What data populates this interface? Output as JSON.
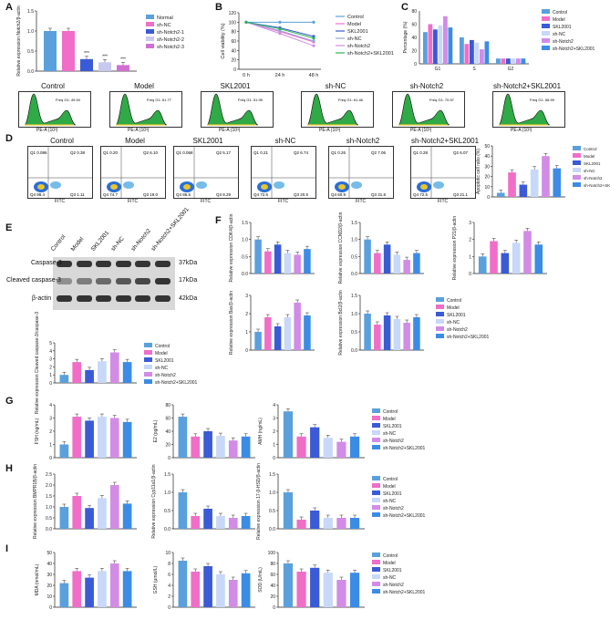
{
  "panels": {
    "A": "A",
    "B": "B",
    "C": "C",
    "D": "D",
    "E": "E",
    "F": "F",
    "G": "G",
    "H": "H",
    "I": "I"
  },
  "colors": {
    "Normal": "#5aa0dc",
    "sh-NC": "#f06ec8",
    "sh-Notch2-1": "#3a5ad6",
    "sh-Notch2-2": "#c8c8f0",
    "sh-Notch2-3": "#d26ed2",
    "Control": "#5aa0dc",
    "Model": "#f06ec8",
    "SKL2001": "#3a5ad6",
    "shNC": "#c8d8f8",
    "sh-Notch2": "#d28ce6",
    "sh-Notch2+SKL2001": "#3c8ce6",
    "sh-Notch2+SKL2001_B": "#28b45a"
  },
  "legendA": [
    "Normal",
    "sh-NC",
    "sh-Notch2-1",
    "sh-Notch2-2",
    "sh-Notch2-3"
  ],
  "legendMain": [
    "Control",
    "Model",
    "SKL2001",
    "sh-NC",
    "sh-Notch2",
    "sh-Notch2+SKL2001"
  ],
  "chart_data": [
    {
      "id": "A",
      "type": "bar",
      "ylabel": "Relative expression Notch2/β-actin",
      "categories": [
        "Normal",
        "sh-NC",
        "sh-Notch2-1",
        "sh-Notch2-2",
        "sh-Notch2-3"
      ],
      "values": [
        1.0,
        1.0,
        0.3,
        0.22,
        0.15
      ],
      "ylim": [
        0,
        1.5
      ],
      "yticks": [
        "0.0",
        "0.5",
        "1.0",
        "1.5"
      ],
      "annot": [
        "",
        "",
        "***",
        "***",
        "***"
      ]
    },
    {
      "id": "B",
      "type": "line",
      "ylabel": "Cell viability (%)",
      "x": [
        "0 h",
        "24 h",
        "48 h"
      ],
      "ylim": [
        0,
        120
      ],
      "yticks": [
        "0",
        "20",
        "40",
        "60",
        "80",
        "100",
        "120"
      ],
      "series": [
        {
          "name": "Control",
          "values": [
            100,
            100,
            100
          ]
        },
        {
          "name": "Model",
          "values": [
            100,
            80,
            58
          ]
        },
        {
          "name": "SKL2001",
          "values": [
            100,
            88,
            70
          ]
        },
        {
          "name": "sh-NC",
          "values": [
            100,
            82,
            60
          ]
        },
        {
          "name": "sh-Notch2",
          "values": [
            100,
            76,
            50
          ]
        },
        {
          "name": "sh-Notch2+SKL2001",
          "values": [
            100,
            86,
            66
          ]
        }
      ]
    },
    {
      "id": "C",
      "type": "bar",
      "ylabel": "Percentage (%)",
      "categories": [
        "G1",
        "S",
        "G2"
      ],
      "ylim": [
        0,
        80
      ],
      "yticks": [
        "0",
        "20",
        "40",
        "60",
        "80"
      ],
      "series": [
        {
          "name": "Control",
          "values": [
            48,
            40,
            8
          ]
        },
        {
          "name": "Model",
          "values": [
            60,
            30,
            8
          ]
        },
        {
          "name": "SKL2001",
          "values": [
            52,
            36,
            8
          ]
        },
        {
          "name": "sh-NC",
          "values": [
            58,
            32,
            8
          ]
        },
        {
          "name": "sh-Notch2",
          "values": [
            72,
            22,
            8
          ]
        },
        {
          "name": "sh-Notch2+SKL2001",
          "values": [
            55,
            34,
            8
          ]
        }
      ]
    },
    {
      "id": "D",
      "type": "bar",
      "ylabel": "Apoptotic cell ratio (%)",
      "ylim": [
        0,
        50
      ],
      "yticks": [
        "0",
        "10",
        "20",
        "30",
        "40",
        "50"
      ],
      "values": [
        4,
        24,
        12,
        27,
        40,
        28
      ]
    },
    {
      "id": "E",
      "type": "bar",
      "ylabel": "Relative expression Cleaved caspase-3/caspase-3",
      "ylim": [
        0,
        5
      ],
      "yticks": [
        "0",
        "1",
        "2",
        "3",
        "4",
        "5"
      ],
      "values": [
        1.0,
        2.6,
        1.6,
        2.7,
        3.8,
        2.6
      ]
    },
    {
      "id": "F1",
      "type": "bar",
      "ylabel": "Relative expression CDK4/β-actin",
      "ylim": [
        0,
        1.5
      ],
      "yticks": [
        "0.0",
        "0.5",
        "1.0",
        "1.5"
      ],
      "values": [
        1.0,
        0.65,
        0.85,
        0.6,
        0.55,
        0.72
      ]
    },
    {
      "id": "F2",
      "type": "bar",
      "ylabel": "Relative expression CCND2/β-actin",
      "ylim": [
        0,
        1.5
      ],
      "yticks": [
        "0.0",
        "0.5",
        "1.0",
        "1.5"
      ],
      "values": [
        1.0,
        0.6,
        0.85,
        0.55,
        0.4,
        0.6
      ]
    },
    {
      "id": "F3",
      "type": "bar",
      "ylabel": "Relative expression P21/β-actin",
      "ylim": [
        0,
        3
      ],
      "yticks": [
        "0",
        "1",
        "2",
        "3"
      ],
      "values": [
        1.0,
        1.9,
        1.2,
        1.8,
        2.5,
        1.7
      ]
    },
    {
      "id": "F4",
      "type": "bar",
      "ylabel": "Relative expression Bax/β-actin",
      "ylim": [
        0,
        3
      ],
      "yticks": [
        "0",
        "1",
        "2",
        "3"
      ],
      "values": [
        1.0,
        1.8,
        1.3,
        1.8,
        2.6,
        1.9
      ]
    },
    {
      "id": "F5",
      "type": "bar",
      "ylabel": "Relative expression Bcl2/β-actin",
      "ylim": [
        0,
        1.5
      ],
      "yticks": [
        "0.0",
        "0.5",
        "1.0",
        "1.5"
      ],
      "values": [
        1.0,
        0.7,
        0.95,
        0.85,
        0.75,
        0.9
      ]
    },
    {
      "id": "G1",
      "type": "bar",
      "ylabel": "FSH (ng/mL)",
      "ylim": [
        0,
        4
      ],
      "yticks": [
        "0",
        "1",
        "2",
        "3",
        "4"
      ],
      "values": [
        1.0,
        3.1,
        2.8,
        3.1,
        3.0,
        2.7
      ]
    },
    {
      "id": "G2",
      "type": "bar",
      "ylabel": "E2 (pg/mL)",
      "ylim": [
        0,
        80
      ],
      "yticks": [
        "0",
        "20",
        "40",
        "60",
        "80"
      ],
      "values": [
        62,
        32,
        40,
        33,
        26,
        32
      ]
    },
    {
      "id": "G3",
      "type": "bar",
      "ylabel": "AMH (ng/mL)",
      "ylim": [
        0,
        4
      ],
      "yticks": [
        "0",
        "1",
        "2",
        "3",
        "4"
      ],
      "values": [
        3.5,
        1.6,
        2.3,
        1.5,
        1.2,
        1.6
      ]
    },
    {
      "id": "H1",
      "type": "bar",
      "ylabel": "Relative expression BMPR1B/β-actin",
      "ylim": [
        0,
        2.5
      ],
      "yticks": [
        "0.0",
        "0.5",
        "1.0",
        "1.5",
        "2.0",
        "2.5"
      ],
      "values": [
        1.0,
        1.5,
        0.95,
        1.4,
        2.0,
        1.15
      ]
    },
    {
      "id": "H2",
      "type": "bar",
      "ylabel": "Relative expression Cyp11a1/β-actin",
      "ylim": [
        0,
        1.5
      ],
      "yticks": [
        "0.0",
        "0.5",
        "1.0",
        "1.5"
      ],
      "values": [
        1.0,
        0.35,
        0.55,
        0.35,
        0.3,
        0.35
      ]
    },
    {
      "id": "H3",
      "type": "bar",
      "ylabel": "Relative expression 17-β-HSD/β-actin",
      "ylim": [
        0,
        1.5
      ],
      "yticks": [
        "0.0",
        "0.5",
        "1.0",
        "1.5"
      ],
      "values": [
        1.0,
        0.25,
        0.5,
        0.3,
        0.3,
        0.3
      ]
    },
    {
      "id": "I1",
      "type": "bar",
      "ylabel": "MDA (nmol/mL)",
      "ylim": [
        0,
        50
      ],
      "yticks": [
        "0",
        "10",
        "20",
        "30",
        "40",
        "50"
      ],
      "values": [
        22,
        33,
        27,
        33,
        40,
        33
      ]
    },
    {
      "id": "I2",
      "type": "bar",
      "ylabel": "GSH (μmol/L)",
      "ylim": [
        0,
        10
      ],
      "yticks": [
        "0",
        "2",
        "4",
        "6",
        "8",
        "10"
      ],
      "values": [
        8.5,
        6.5,
        7.5,
        6.0,
        5.0,
        6.2
      ]
    },
    {
      "id": "I3",
      "type": "bar",
      "ylabel": "SOD (U/mL)",
      "ylim": [
        0,
        100
      ],
      "yticks": [
        "0",
        "20",
        "40",
        "60",
        "80",
        "100"
      ],
      "values": [
        80,
        65,
        72,
        63,
        50,
        63
      ]
    }
  ],
  "flowcell": {
    "titles": [
      "Control",
      "Model",
      "SKL2001",
      "sh-NC",
      "sh-Notch2",
      "sh-Notch2+SKL2001"
    ],
    "xlabel": "PE-A (10³)",
    "g1": [
      "Freq G1: 49.94",
      "Freq G1: 61.77",
      "Freq G1: 51.95",
      "Freq G1: 61.46",
      "Freq G1: 70.57",
      "Freq G1: 58.59"
    ]
  },
  "flowapop": {
    "titles": [
      "Control",
      "Model",
      "SKL2001",
      "sh-NC",
      "sh-Notch2",
      "sh-Notch2+SKL2001"
    ],
    "q1": [
      "0.086",
      "0.20",
      "0.068",
      "0.21",
      "0.26",
      "0.28"
    ],
    "q2": [
      "0.38",
      "6.10",
      "5.17",
      "6.74",
      "7.06",
      "6.07"
    ],
    "q3": [
      "1.11",
      "19.0",
      "8.29",
      "20.5",
      "31.8",
      "21.1"
    ],
    "q4": [
      "98.4",
      "74.7",
      "86.5",
      "72.6",
      "60.9",
      "72.5"
    ],
    "xlabel": "FITC",
    "ylabel": "PI"
  },
  "western": {
    "lanes": [
      "Control",
      "Model",
      "SKL2001",
      "sh-NC",
      "sh-Notch2",
      "sh-Notch2+SKL2001"
    ],
    "rows": [
      "Caspase-3",
      "Cleaved caspase-3",
      "β-actin"
    ],
    "kda": [
      "37kDa",
      "17kDa",
      "42kDa"
    ]
  }
}
